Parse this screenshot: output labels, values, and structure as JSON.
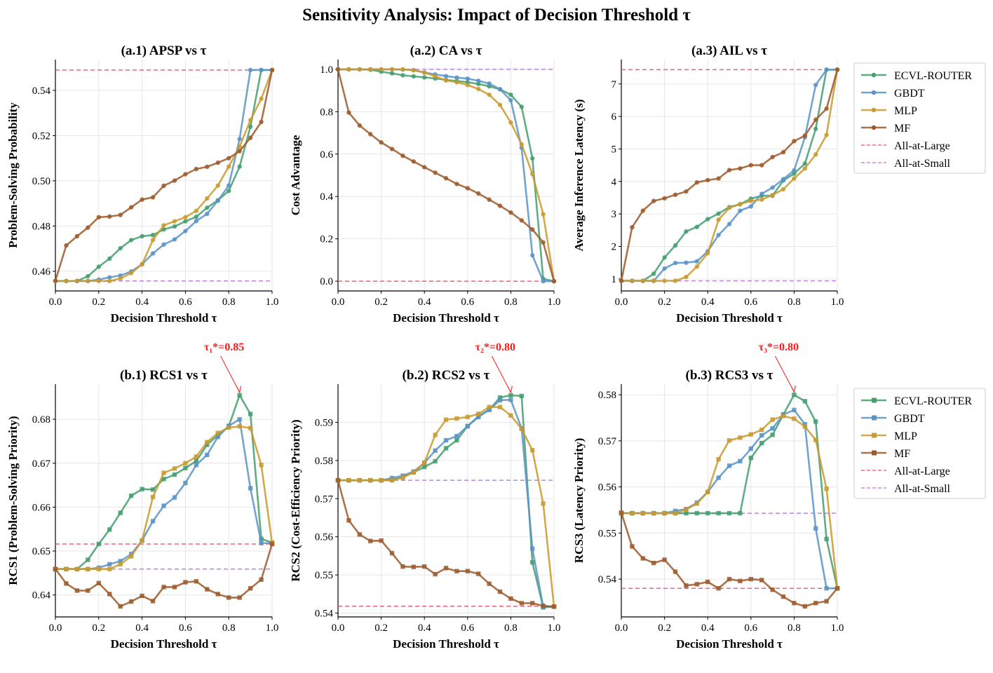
{
  "title": "Sensitivity Analysis: Impact of Decision Threshold τ",
  "colors": {
    "ECVL-ROUTER": "#449e6e",
    "GBDT": "#5b93c7",
    "MLP": "#c99a2e",
    "MF": "#9c5a2c",
    "All-at-Large": "#e8546e",
    "All-at-Small": "#b874e0",
    "annotation": "#ff1a1a"
  },
  "legend": [
    "ECVL-ROUTER",
    "GBDT",
    "MLP",
    "MF",
    "All-at-Large",
    "All-at-Small"
  ],
  "chart_data": [
    {
      "type": "line",
      "title": "(a.1) APSP vs τ",
      "xlabel": "Decision Threshold τ",
      "ylabel": "Problem-Solving Probability",
      "marker": "circle",
      "xlim": [
        0,
        1
      ],
      "ylim": [
        0.4513,
        0.5536
      ],
      "grid": true,
      "legend": "right",
      "xticks": [
        "0.0",
        "0.2",
        "0.4",
        "0.6",
        "0.8",
        "1.0"
      ],
      "yticks": [
        "0.46",
        "0.48",
        "0.50",
        "0.52",
        "0.54"
      ],
      "x": [
        0,
        0.05,
        0.1,
        0.15,
        0.2,
        0.25,
        0.3,
        0.35,
        0.4,
        0.45,
        0.5,
        0.55,
        0.6,
        0.65,
        0.7,
        0.75,
        0.8,
        0.85,
        0.9,
        0.95,
        1.0
      ],
      "series": [
        {
          "name": "ECVL-ROUTER",
          "values": [
            0.4557,
            0.4557,
            0.4557,
            0.4578,
            0.462,
            0.4656,
            0.4702,
            0.4738,
            0.4755,
            0.476,
            0.4785,
            0.4798,
            0.4821,
            0.4841,
            0.4881,
            0.4914,
            0.4955,
            0.5063,
            0.5239,
            0.549,
            0.549
          ]
        },
        {
          "name": "GBDT",
          "values": [
            0.4557,
            0.4557,
            0.4557,
            0.4557,
            0.4563,
            0.4573,
            0.4581,
            0.4599,
            0.4631,
            0.4679,
            0.4718,
            0.4741,
            0.4778,
            0.4822,
            0.4854,
            0.4912,
            0.4979,
            0.5185,
            0.549,
            0.549,
            0.549
          ]
        },
        {
          "name": "MLP",
          "values": [
            0.4557,
            0.4557,
            0.4557,
            0.4557,
            0.4557,
            0.4557,
            0.4568,
            0.4592,
            0.4631,
            0.4738,
            0.4803,
            0.4821,
            0.4839,
            0.4867,
            0.4922,
            0.4979,
            0.5063,
            0.5151,
            0.5268,
            0.5363,
            0.549
          ]
        },
        {
          "name": "MF",
          "values": [
            0.4558,
            0.4714,
            0.4755,
            0.4793,
            0.4839,
            0.4842,
            0.4849,
            0.4883,
            0.4917,
            0.4927,
            0.4978,
            0.5001,
            0.5029,
            0.5052,
            0.5062,
            0.508,
            0.51,
            0.5131,
            0.519,
            0.526,
            0.549
          ]
        }
      ],
      "baselines": [
        {
          "name": "All-at-Large",
          "value": 0.549
        },
        {
          "name": "All-at-Small",
          "value": 0.4557
        }
      ]
    },
    {
      "type": "line",
      "title": "(a.2) CA vs τ",
      "xlabel": "Decision Threshold τ",
      "ylabel": "Cost Advantage",
      "marker": "circle",
      "xlim": [
        0,
        1
      ],
      "ylim": [
        -0.046,
        1.046
      ],
      "grid": true,
      "xticks": [
        "0.0",
        "0.2",
        "0.4",
        "0.6",
        "0.8",
        "1.0"
      ],
      "yticks": [
        "0.0",
        "0.2",
        "0.4",
        "0.6",
        "0.8",
        "1.0"
      ],
      "x": [
        0,
        0.05,
        0.1,
        0.15,
        0.2,
        0.25,
        0.3,
        0.35,
        0.4,
        0.45,
        0.5,
        0.55,
        0.6,
        0.65,
        0.7,
        0.75,
        0.8,
        0.85,
        0.9,
        0.95,
        1.0
      ],
      "series": [
        {
          "name": "ECVL-ROUTER",
          "values": [
            1.0,
            1.0,
            1.0,
            0.998,
            0.989,
            0.981,
            0.972,
            0.967,
            0.962,
            0.957,
            0.95,
            0.945,
            0.939,
            0.931,
            0.92,
            0.906,
            0.88,
            0.823,
            0.58,
            0.011,
            0.0
          ]
        },
        {
          "name": "GBDT",
          "values": [
            1.0,
            1.0,
            1.0,
            1.0,
            1.0,
            1.0,
            0.999,
            0.996,
            0.985,
            0.976,
            0.968,
            0.961,
            0.956,
            0.946,
            0.933,
            0.906,
            0.854,
            0.63,
            0.122,
            0.0,
            0.0
          ]
        },
        {
          "name": "MLP",
          "values": [
            1.0,
            1.0,
            1.0,
            1.0,
            1.0,
            1.0,
            1.0,
            0.996,
            0.985,
            0.967,
            0.948,
            0.939,
            0.926,
            0.907,
            0.88,
            0.832,
            0.749,
            0.646,
            0.506,
            0.316,
            0.0
          ]
        },
        {
          "name": "MF",
          "values": [
            1.0,
            0.796,
            0.735,
            0.694,
            0.655,
            0.624,
            0.592,
            0.565,
            0.538,
            0.512,
            0.486,
            0.459,
            0.439,
            0.414,
            0.385,
            0.356,
            0.324,
            0.287,
            0.244,
            0.183,
            0.0
          ]
        }
      ],
      "baselines": [
        {
          "name": "All-at-Large",
          "value": 0.0
        },
        {
          "name": "All-at-Small",
          "value": 1.0
        }
      ]
    },
    {
      "type": "line",
      "title": "(a.3) AIL vs τ",
      "xlabel": "Decision Threshold τ",
      "ylabel": "Average Inference Latency (s)",
      "marker": "circle",
      "xlim": [
        0,
        1
      ],
      "ylim": [
        0.63,
        7.75
      ],
      "grid": true,
      "xticks": [
        "0.0",
        "0.2",
        "0.4",
        "0.6",
        "0.8",
        "1.0"
      ],
      "yticks": [
        "1",
        "2",
        "3",
        "4",
        "5",
        "6",
        "7"
      ],
      "x": [
        0,
        0.05,
        0.1,
        0.15,
        0.2,
        0.25,
        0.3,
        0.35,
        0.4,
        0.45,
        0.5,
        0.55,
        0.6,
        0.65,
        0.7,
        0.75,
        0.8,
        0.85,
        0.9,
        0.95,
        1.0
      ],
      "series": [
        {
          "name": "ECVL-ROUTER",
          "values": [
            0.94,
            0.94,
            0.94,
            1.16,
            1.66,
            2.03,
            2.46,
            2.6,
            2.84,
            3.01,
            3.21,
            3.3,
            3.47,
            3.56,
            3.56,
            4.03,
            4.24,
            4.55,
            5.62,
            7.44,
            7.44
          ]
        },
        {
          "name": "GBDT",
          "values": [
            0.94,
            0.94,
            0.94,
            0.94,
            1.32,
            1.49,
            1.5,
            1.54,
            1.85,
            2.35,
            2.69,
            3.1,
            3.23,
            3.62,
            3.81,
            4.07,
            4.34,
            5.36,
            6.97,
            7.44,
            7.44
          ]
        },
        {
          "name": "MLP",
          "values": [
            0.94,
            0.94,
            0.94,
            0.94,
            0.94,
            0.94,
            1.06,
            1.38,
            1.79,
            2.82,
            3.19,
            3.3,
            3.4,
            3.44,
            3.58,
            3.76,
            4.09,
            4.4,
            4.83,
            5.43,
            7.44
          ]
        },
        {
          "name": "MF",
          "values": [
            0.94,
            2.59,
            3.1,
            3.4,
            3.48,
            3.59,
            3.69,
            3.97,
            4.04,
            4.09,
            4.35,
            4.4,
            4.5,
            4.5,
            4.75,
            4.9,
            5.24,
            5.41,
            5.9,
            6.24,
            7.44
          ]
        }
      ],
      "baselines": [
        {
          "name": "All-at-Large",
          "value": 7.44
        },
        {
          "name": "All-at-Small",
          "value": 0.94
        }
      ]
    },
    {
      "type": "line",
      "title": "(b.1) RCS1 vs τ",
      "xlabel": "Decision Threshold τ",
      "ylabel": "RCS1 (Problem-Solving Priority)",
      "marker": "square",
      "xlim": [
        0,
        1
      ],
      "ylim": [
        0.635,
        0.688
      ],
      "grid": true,
      "legend": "right",
      "xticks": [
        "0.0",
        "0.2",
        "0.4",
        "0.6",
        "0.8",
        "1.0"
      ],
      "yticks": [
        "0.64",
        "0.65",
        "0.66",
        "0.67",
        "0.68"
      ],
      "x": [
        0,
        0.05,
        0.1,
        0.15,
        0.2,
        0.25,
        0.3,
        0.35,
        0.4,
        0.45,
        0.5,
        0.55,
        0.6,
        0.65,
        0.7,
        0.75,
        0.8,
        0.85,
        0.9,
        0.95,
        1.0
      ],
      "series": [
        {
          "name": "ECVL-ROUTER",
          "values": [
            0.6459,
            0.6459,
            0.6459,
            0.648,
            0.6516,
            0.6549,
            0.6587,
            0.6626,
            0.6641,
            0.664,
            0.6664,
            0.6674,
            0.6689,
            0.6705,
            0.6742,
            0.6764,
            0.6784,
            0.6855,
            0.6812,
            0.6528,
            0.6519
          ]
        },
        {
          "name": "GBDT",
          "values": [
            0.6459,
            0.6459,
            0.6459,
            0.6459,
            0.6462,
            0.647,
            0.6477,
            0.6493,
            0.6524,
            0.6568,
            0.6603,
            0.6622,
            0.6655,
            0.6696,
            0.6719,
            0.676,
            0.6785,
            0.68,
            0.6643,
            0.6518,
            0.6518
          ]
        },
        {
          "name": "MLP",
          "values": [
            0.6459,
            0.6459,
            0.6459,
            0.6459,
            0.6459,
            0.6459,
            0.647,
            0.6488,
            0.6524,
            0.6623,
            0.6678,
            0.6688,
            0.67,
            0.6715,
            0.6748,
            0.6769,
            0.6781,
            0.6784,
            0.678,
            0.6696,
            0.6518
          ]
        },
        {
          "name": "MF",
          "values": [
            0.6459,
            0.6426,
            0.641,
            0.641,
            0.6427,
            0.6402,
            0.6374,
            0.6385,
            0.6398,
            0.6386,
            0.6418,
            0.6418,
            0.6429,
            0.6431,
            0.6413,
            0.6402,
            0.6394,
            0.6394,
            0.6415,
            0.6435,
            0.6516
          ]
        }
      ],
      "baselines": [
        {
          "name": "All-at-Large",
          "value": 0.6516
        },
        {
          "name": "All-at-Small",
          "value": 0.6459
        }
      ],
      "annotation": {
        "text": "τ₁*=0.85",
        "x": 0.85,
        "y": 0.6855
      }
    },
    {
      "type": "line",
      "title": "(b.2) RCS2 vs τ",
      "xlabel": "Decision Threshold τ",
      "ylabel": "RCS2 (Cost-Efficiency Priority)",
      "marker": "square",
      "xlim": [
        0,
        1
      ],
      "ylim": [
        0.539,
        0.6
      ],
      "grid": true,
      "xticks": [
        "0.0",
        "0.2",
        "0.4",
        "0.6",
        "0.8",
        "1.0"
      ],
      "yticks": [
        "0.54",
        "0.55",
        "0.56",
        "0.57",
        "0.58",
        "0.59"
      ],
      "x": [
        0,
        0.05,
        0.1,
        0.15,
        0.2,
        0.25,
        0.3,
        0.35,
        0.4,
        0.45,
        0.5,
        0.55,
        0.6,
        0.65,
        0.7,
        0.75,
        0.8,
        0.85,
        0.9,
        0.95,
        1.0
      ],
      "series": [
        {
          "name": "ECVL-ROUTER",
          "values": [
            0.5748,
            0.5748,
            0.5748,
            0.5748,
            0.5748,
            0.5749,
            0.5757,
            0.5769,
            0.5783,
            0.5798,
            0.5832,
            0.5853,
            0.589,
            0.5914,
            0.5933,
            0.5965,
            0.5971,
            0.5969,
            0.5533,
            0.5415,
            0.5417
          ]
        },
        {
          "name": "GBDT",
          "values": [
            0.5748,
            0.5748,
            0.5748,
            0.5748,
            0.5748,
            0.5754,
            0.576,
            0.5771,
            0.5794,
            0.5826,
            0.5853,
            0.5864,
            0.589,
            0.5916,
            0.5933,
            0.5958,
            0.5959,
            0.5884,
            0.5569,
            0.5417,
            0.5417
          ]
        },
        {
          "name": "MLP",
          "values": [
            0.5748,
            0.5748,
            0.5748,
            0.5748,
            0.5748,
            0.5748,
            0.5755,
            0.5769,
            0.5794,
            0.5867,
            0.5907,
            0.591,
            0.5914,
            0.5922,
            0.594,
            0.594,
            0.5918,
            0.5883,
            0.5827,
            0.5687,
            0.5417
          ]
        },
        {
          "name": "MF",
          "values": [
            0.5748,
            0.5643,
            0.5606,
            0.5589,
            0.559,
            0.5557,
            0.5522,
            0.5521,
            0.5522,
            0.5502,
            0.5518,
            0.551,
            0.551,
            0.5503,
            0.5477,
            0.5456,
            0.5438,
            0.5426,
            0.5426,
            0.5419,
            0.5417
          ]
        }
      ],
      "baselines": [
        {
          "name": "All-at-Large",
          "value": 0.5418
        },
        {
          "name": "All-at-Small",
          "value": 0.5748
        }
      ],
      "annotation": {
        "text": "τ₂*=0.80",
        "x": 0.8,
        "y": 0.5971
      }
    },
    {
      "type": "line",
      "title": "(b.3) RCS3 vs τ",
      "xlabel": "Decision Threshold τ",
      "ylabel": "RCS3 (Latency Priority)",
      "marker": "square",
      "xlim": [
        0,
        1
      ],
      "ylim": [
        0.5318,
        0.5823
      ],
      "grid": true,
      "legend": "right",
      "xticks": [
        "0.0",
        "0.2",
        "0.4",
        "0.6",
        "0.8",
        "1.0"
      ],
      "yticks": [
        "0.54",
        "0.55",
        "0.56",
        "0.57",
        "0.58"
      ],
      "x": [
        0,
        0.05,
        0.1,
        0.15,
        0.2,
        0.25,
        0.3,
        0.35,
        0.4,
        0.45,
        0.5,
        0.55,
        0.6,
        0.65,
        0.7,
        0.75,
        0.8,
        0.85,
        0.9,
        0.95,
        1.0
      ],
      "series": [
        {
          "name": "ECVL-ROUTER",
          "values": [
            0.5543,
            0.5543,
            0.5543,
            0.5543,
            0.5543,
            0.5543,
            0.5543,
            0.5543,
            0.5543,
            0.5543,
            0.5543,
            0.5543,
            0.5663,
            0.5695,
            0.5713,
            0.5757,
            0.58,
            0.5786,
            0.5742,
            0.5487,
            0.538
          ]
        },
        {
          "name": "GBDT",
          "values": [
            0.5543,
            0.5543,
            0.5543,
            0.5543,
            0.5543,
            0.5548,
            0.5552,
            0.5566,
            0.5589,
            0.562,
            0.5646,
            0.5656,
            0.5683,
            0.5712,
            0.5727,
            0.5757,
            0.5767,
            0.5736,
            0.551,
            0.538,
            0.538
          ]
        },
        {
          "name": "MLP",
          "values": [
            0.5543,
            0.5543,
            0.5543,
            0.5543,
            0.5543,
            0.5543,
            0.5551,
            0.5564,
            0.5589,
            0.566,
            0.5701,
            0.5707,
            0.5714,
            0.5724,
            0.5746,
            0.5754,
            0.5748,
            0.5731,
            0.5702,
            0.5596,
            0.538
          ]
        },
        {
          "name": "MF",
          "values": [
            0.5544,
            0.5471,
            0.5445,
            0.5435,
            0.5442,
            0.5416,
            0.5386,
            0.5389,
            0.5394,
            0.538,
            0.54,
            0.5396,
            0.54,
            0.5398,
            0.5377,
            0.5362,
            0.5348,
            0.5341,
            0.5348,
            0.5352,
            0.538
          ]
        }
      ],
      "baselines": [
        {
          "name": "All-at-Large",
          "value": 0.538
        },
        {
          "name": "All-at-Small",
          "value": 0.5543
        }
      ],
      "annotation": {
        "text": "τ₃*=0.80",
        "x": 0.8,
        "y": 0.58
      }
    }
  ]
}
